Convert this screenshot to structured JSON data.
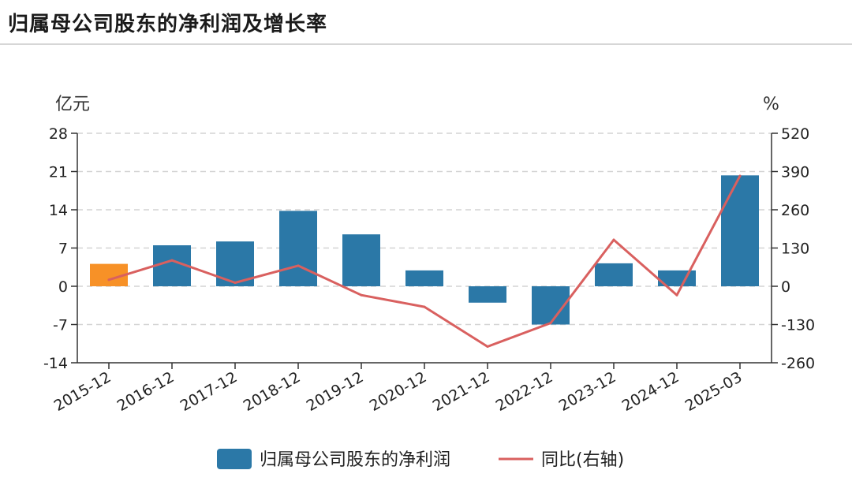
{
  "title": "归属母公司股东的净利润及增长率",
  "chart_data": {
    "type": "bar",
    "categories": [
      "2015-12",
      "2016-12",
      "2017-12",
      "2018-12",
      "2019-12",
      "2020-12",
      "2021-12",
      "2022-12",
      "2023-12",
      "2024-12",
      "2025-03"
    ],
    "series": [
      {
        "name": "归属母公司股东的净利润",
        "type": "bar",
        "axis": "left",
        "color": "#2b78a7",
        "highlight_color": "#f79127",
        "highlight_index": 0,
        "values": [
          4.1,
          7.5,
          8.2,
          13.8,
          9.5,
          2.9,
          -3.0,
          -7.0,
          4.2,
          2.9,
          20.3
        ]
      },
      {
        "name": "同比(右轴)",
        "type": "line",
        "axis": "right",
        "color": "#d9605f",
        "values": [
          22,
          88,
          12,
          70,
          -30,
          -70,
          -205,
          -125,
          158,
          -30,
          375
        ]
      }
    ],
    "y_left": {
      "unit": "亿元",
      "ticks": [
        -14,
        -7,
        0,
        7,
        14,
        21,
        28
      ],
      "ylim": [
        -14,
        28
      ]
    },
    "y_right": {
      "unit": "%",
      "ticks": [
        -260,
        -130,
        0,
        130,
        260,
        390,
        520
      ],
      "ylim": [
        -260,
        520
      ]
    },
    "grid": true,
    "legend_position": "bottom-center"
  }
}
